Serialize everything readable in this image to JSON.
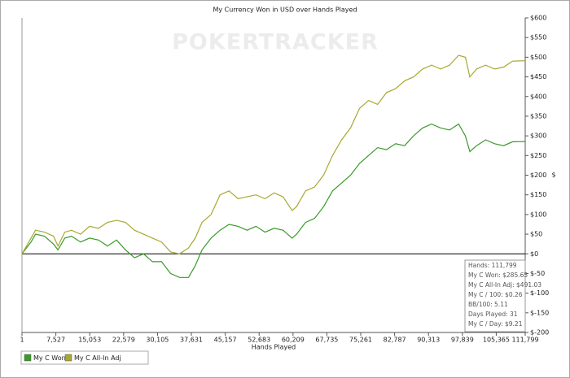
{
  "chart_data": {
    "type": "line",
    "title": "My Currency Won in USD over Hands Played",
    "watermark": "POKERTRACKER",
    "x_label": "Hands Played",
    "y_label": "$",
    "xlim": [
      1,
      111799
    ],
    "ylim": [
      -200,
      600
    ],
    "xticks": [
      1,
      {
        "value": 7527,
        "label": "7,527"
      },
      {
        "value": 15053,
        "label": "15,053"
      },
      {
        "value": 22579,
        "label": "22,579"
      },
      {
        "value": 30105,
        "label": "30,105"
      },
      {
        "value": 37631,
        "label": "37,631"
      },
      {
        "value": 45157,
        "label": "45,157"
      },
      {
        "value": 52683,
        "label": "52,683"
      },
      {
        "value": 60209,
        "label": "60,209"
      },
      {
        "value": 67735,
        "label": "67,735"
      },
      {
        "value": 75261,
        "label": "75,261"
      },
      {
        "value": 82787,
        "label": "82,787"
      },
      {
        "value": 90313,
        "label": "90,313"
      },
      {
        "value": 97839,
        "label": "97,839"
      },
      {
        "value": 105365,
        "label": "105,365"
      },
      {
        "value": 111799,
        "label": "111,799"
      }
    ],
    "yticks": [
      {
        "value": 600,
        "label": "$600"
      },
      {
        "value": 550,
        "label": "$550"
      },
      {
        "value": 500,
        "label": "$500"
      },
      {
        "value": 450,
        "label": "$450"
      },
      {
        "value": 400,
        "label": "$400"
      },
      {
        "value": 350,
        "label": "$350"
      },
      {
        "value": 300,
        "label": "$300"
      },
      {
        "value": 250,
        "label": "$250"
      },
      {
        "value": 200,
        "label": "$200"
      },
      {
        "value": 150,
        "label": "$150"
      },
      {
        "value": 100,
        "label": "$100"
      },
      {
        "value": 50,
        "label": "$50"
      },
      {
        "value": 0,
        "label": "$0"
      },
      {
        "value": -50,
        "label": "$-50"
      },
      {
        "value": -100,
        "label": "$-100"
      },
      {
        "value": -150,
        "label": "$-150"
      },
      {
        "value": -200,
        "label": "$-200"
      }
    ],
    "legend": "bottom-left",
    "x": [
      1,
      2000,
      3000,
      5000,
      7000,
      8000,
      9500,
      11000,
      13000,
      15000,
      17000,
      19000,
      21000,
      23000,
      25000,
      27000,
      29000,
      31000,
      33000,
      35000,
      37000,
      38500,
      40000,
      42000,
      44000,
      46000,
      48000,
      50000,
      52000,
      54000,
      56000,
      58000,
      60000,
      61000,
      63000,
      65000,
      67000,
      69000,
      71000,
      73000,
      75000,
      77000,
      79000,
      81000,
      83000,
      85000,
      87000,
      89000,
      91000,
      93000,
      95000,
      97000,
      98500,
      99500,
      101000,
      103000,
      105000,
      107000,
      109000,
      111799
    ],
    "series": [
      {
        "name": "My C Won",
        "color": "#3a9a2a",
        "values": [
          0,
          30,
          50,
          45,
          25,
          10,
          40,
          45,
          30,
          40,
          35,
          20,
          35,
          10,
          -10,
          0,
          -20,
          -20,
          -50,
          -60,
          -60,
          -30,
          10,
          40,
          60,
          75,
          70,
          60,
          70,
          55,
          65,
          60,
          40,
          50,
          80,
          90,
          120,
          160,
          180,
          200,
          230,
          250,
          270,
          265,
          280,
          275,
          300,
          320,
          330,
          320,
          315,
          330,
          300,
          260,
          275,
          290,
          280,
          275,
          285,
          285.65
        ]
      },
      {
        "name": "My C All-In Adj",
        "color": "#a8a830",
        "values": [
          0,
          40,
          60,
          55,
          45,
          20,
          55,
          60,
          50,
          70,
          65,
          80,
          85,
          80,
          60,
          50,
          40,
          30,
          5,
          0,
          15,
          40,
          80,
          100,
          150,
          160,
          140,
          145,
          150,
          140,
          155,
          145,
          110,
          120,
          160,
          170,
          200,
          250,
          290,
          320,
          370,
          390,
          380,
          410,
          420,
          440,
          450,
          470,
          480,
          470,
          480,
          505,
          500,
          450,
          470,
          480,
          470,
          475,
          490,
          491.03
        ]
      }
    ],
    "stats": [
      "Hands: 111,799",
      "My C Won: $285.65",
      "My C All-In Adj: $491.03",
      "My C / 100: $0.26",
      "BB/100: 5.11",
      "Days Played: 31",
      "My C / Day: $9.21"
    ]
  }
}
